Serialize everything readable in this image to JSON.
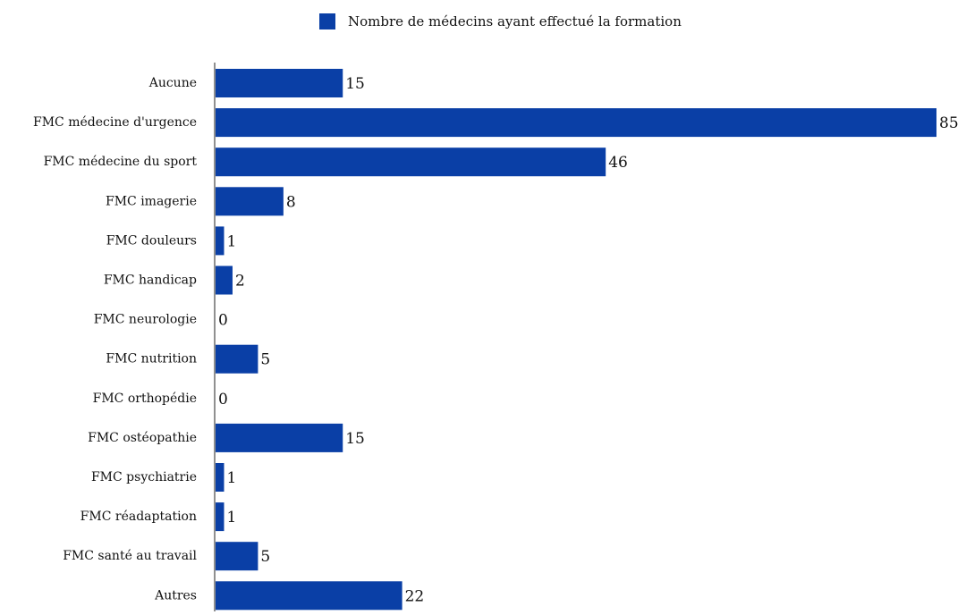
{
  "chart_data": {
    "type": "bar",
    "orientation": "horizontal",
    "categories": [
      "Aucune",
      "FMC médecine d'urgence",
      "FMC médecine du sport",
      "FMC imagerie",
      "FMC douleurs",
      "FMC handicap",
      "FMC neurologie",
      "FMC nutrition",
      "FMC orthopédie",
      "FMC ostéopathie",
      "FMC psychiatrie",
      "FMC réadaptation",
      "FMC santé au travail",
      "Autres"
    ],
    "series": [
      {
        "name": "Nombre de médecins ayant effectué la formation",
        "values": [
          15,
          85,
          46,
          8,
          1,
          2,
          0,
          5,
          0,
          15,
          1,
          1,
          5,
          22
        ]
      }
    ],
    "title": "",
    "xlabel": "",
    "ylabel": "",
    "xlim": [
      0,
      85
    ],
    "grid": false,
    "legend": "top-center",
    "data_labels": true
  },
  "colors": {
    "bar": "#0a3fa6",
    "axis": "#222222"
  }
}
